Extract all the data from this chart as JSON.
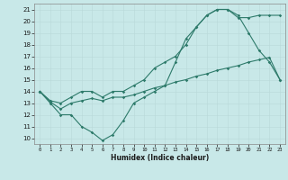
{
  "xlabel": "Humidex (Indice chaleur)",
  "bg_color": "#c8e8e8",
  "line_color": "#2d7a6a",
  "xlim": [
    -0.5,
    23.5
  ],
  "ylim": [
    9.5,
    21.5
  ],
  "xticks": [
    0,
    1,
    2,
    3,
    4,
    5,
    6,
    7,
    8,
    9,
    10,
    11,
    12,
    13,
    14,
    15,
    16,
    17,
    18,
    19,
    20,
    21,
    22,
    23
  ],
  "yticks": [
    10,
    11,
    12,
    13,
    14,
    15,
    16,
    17,
    18,
    19,
    20,
    21
  ],
  "line1_x": [
    0,
    1,
    2,
    3,
    4,
    5,
    6,
    7,
    8,
    9,
    10,
    11,
    12,
    13,
    14,
    15,
    16,
    17,
    18,
    19,
    20,
    21,
    22,
    23
  ],
  "line1_y": [
    14,
    13,
    12,
    12,
    11,
    10.5,
    9.8,
    10.3,
    11.5,
    13,
    13.5,
    14,
    14.5,
    16.5,
    18.5,
    19.5,
    20.5,
    21,
    21,
    20.5,
    19,
    17.5,
    16.5,
    15
  ],
  "line2_x": [
    0,
    1,
    2,
    3,
    4,
    5,
    6,
    7,
    8,
    9,
    10,
    11,
    12,
    13,
    14,
    15,
    16,
    17,
    18,
    19,
    20,
    21,
    22,
    23
  ],
  "line2_y": [
    14,
    13.2,
    13,
    13.5,
    14,
    14,
    13.5,
    14,
    14,
    14.5,
    15,
    16,
    16.5,
    17,
    18,
    19.5,
    20.5,
    21,
    21,
    20.3,
    20.3,
    20.5,
    20.5,
    20.5
  ],
  "line3_x": [
    0,
    1,
    2,
    3,
    4,
    5,
    6,
    7,
    8,
    9,
    10,
    11,
    12,
    13,
    14,
    15,
    16,
    17,
    18,
    19,
    20,
    21,
    22,
    23
  ],
  "line3_y": [
    14,
    13.1,
    12.5,
    13,
    13.2,
    13.4,
    13.2,
    13.5,
    13.5,
    13.7,
    14,
    14.3,
    14.5,
    14.8,
    15,
    15.3,
    15.5,
    15.8,
    16,
    16.2,
    16.5,
    16.7,
    16.9,
    15
  ]
}
